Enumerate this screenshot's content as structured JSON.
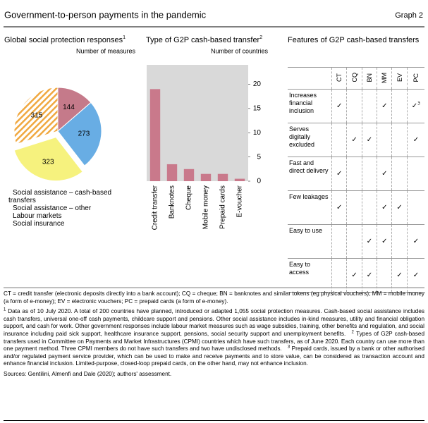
{
  "header": {
    "title": "Government-to-person payments in the pandemic",
    "label": "Graph 2"
  },
  "chart_data": [
    {
      "type": "pie",
      "title": "Global social protection responses",
      "title_note": "1",
      "unit": "Number of measures",
      "categories": [
        "Social assistance – cash-based transfers",
        "Social assistance – other",
        "Labour markets",
        "Social insurance"
      ],
      "values": [
        323,
        315,
        144,
        273
      ],
      "colors": [
        "#f6f27e",
        "#f0a840",
        "#c57a8a",
        "#68ade4"
      ],
      "hatched": [
        false,
        true,
        false,
        false
      ],
      "exploded": [
        true,
        false,
        false,
        false
      ]
    },
    {
      "type": "bar",
      "title": "Type of G2P cash-based transfer",
      "title_note": "2",
      "unit": "Number of countries",
      "categories": [
        "Credit transfer",
        "Banknotes",
        "Cheque",
        "Mobile money",
        "Prepaid cards",
        "E-voucher"
      ],
      "values": [
        19,
        3.5,
        2.5,
        1.5,
        1.5,
        0.5
      ],
      "color": "#c9798b",
      "background": "#d9d9d9",
      "ylim": [
        0,
        24
      ],
      "yticks": [
        0,
        5,
        10,
        15,
        20
      ]
    }
  ],
  "table": {
    "title": "Features of G2P cash-based transfers",
    "columns": [
      "CT",
      "CQ",
      "BN",
      "MM",
      "EV",
      "PC"
    ],
    "rows": [
      {
        "label": "Increases financial inclusion",
        "cells": [
          "✓",
          null,
          null,
          "✓",
          null,
          {
            "text": "✓",
            "note": "3"
          }
        ]
      },
      {
        "label": "Serves digitally excluded",
        "cells": [
          null,
          "✓",
          "✓",
          null,
          null,
          "✓"
        ]
      },
      {
        "label": "Fast and direct delivery",
        "cells": [
          "✓",
          null,
          null,
          "✓",
          null,
          null
        ]
      },
      {
        "label": "Few leakages",
        "cells": [
          "✓",
          null,
          null,
          "✓",
          "✓",
          null
        ]
      },
      {
        "label": "Easy to use",
        "cells": [
          null,
          null,
          "✓",
          "✓",
          null,
          "✓"
        ]
      },
      {
        "label": "Easy to access",
        "cells": [
          null,
          "✓",
          "✓",
          null,
          "✓",
          "✓"
        ]
      }
    ]
  },
  "notes": {
    "abbreviations": "CT = credit transfer (electronic deposits directly into a bank account); CQ = cheque; BN = banknotes and similar tokens (eg physical vouchers); MM = mobile money (a form of e-money); EV = electronic vouchers; PC = prepaid cards (a form of e-money).",
    "footnotes": [
      {
        "marker": "1",
        "text": "Data as of 10 July 2020. A total of 200 countries have planned, introduced or adapted 1,055 social protection measures. Cash-based social assistance includes cash transfers, universal one-off cash payments, childcare support and pensions. Other social assistance includes in-kind measures, utility and financial obligation support, and cash for work. Other government responses include labour market measures such as wage subsidies, training, other benefits and regulation, and social insurance including paid sick support, healthcare insurance support, pensions, social security support and unemployment benefits."
      },
      {
        "marker": "2",
        "text": "Types of G2P cash-based transfers used in Committee on Payments and Market Infrastructures (CPMI) countries which have such transfers, as of June 2020. Each country can use more than one payment method. Three CPMI members do not have such transfers and two have undisclosed methods."
      },
      {
        "marker": "3",
        "text": "Prepaid cards, issued by a bank or other authorised and/or regulated payment service provider, which can be used to make and receive payments and to store value, can be considered as transaction account and enhance financial inclusion. Limited-purpose, closed-loop prepaid cards, on the other hand, may not enhance inclusion."
      }
    ],
    "sources": "Sources: Gentilini, Almenfi and Dale (2020); authors' assessment."
  }
}
